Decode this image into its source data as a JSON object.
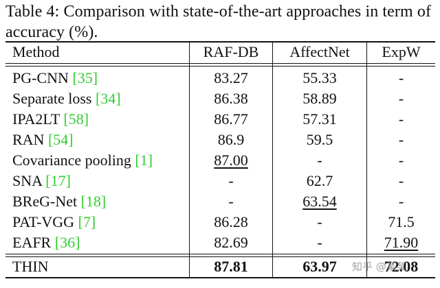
{
  "caption": "Table 4: Comparison with state-of-the-art approaches in term of accuracy (%).",
  "header": {
    "method": "Method",
    "raf": "RAF-DB",
    "affect": "AffectNet",
    "expw": "ExpW"
  },
  "rows": [
    {
      "name": "PG-CNN",
      "cite": "[35]",
      "raf": "83.27",
      "affect": "55.33",
      "expw": "-"
    },
    {
      "name": "Separate loss",
      "cite": "[34]",
      "raf": "86.38",
      "affect": "58.89",
      "expw": "-"
    },
    {
      "name": "IPA2LT",
      "cite": "[58]",
      "raf": "86.77",
      "affect": "57.31",
      "expw": "-"
    },
    {
      "name": "RAN",
      "cite": "[54]",
      "raf": "86.9",
      "affect": "59.5",
      "expw": "-"
    },
    {
      "name": "Covariance pooling",
      "cite": "[1]",
      "raf": "87.00",
      "affect": "-",
      "expw": "-"
    },
    {
      "name": "SNA",
      "cite": "[17]",
      "raf": "-",
      "affect": "62.7",
      "expw": "-"
    },
    {
      "name": "BReG-Net",
      "cite": "[18]",
      "raf": "-",
      "affect": "63.54",
      "expw": "-"
    },
    {
      "name": "PAT-VGG",
      "cite": "[7]",
      "raf": "86.28",
      "affect": "-",
      "expw": "71.5"
    },
    {
      "name": "EAFR",
      "cite": "[36]",
      "raf": "82.69",
      "affect": "-",
      "expw": "71.90"
    }
  ],
  "final_row": {
    "name": "THIN",
    "raf": "87.81",
    "affect": "63.97",
    "expw": "72.08"
  },
  "watermark": "知乎 @某某",
  "colors": {
    "citation": "#33cc33",
    "text": "#111111"
  }
}
